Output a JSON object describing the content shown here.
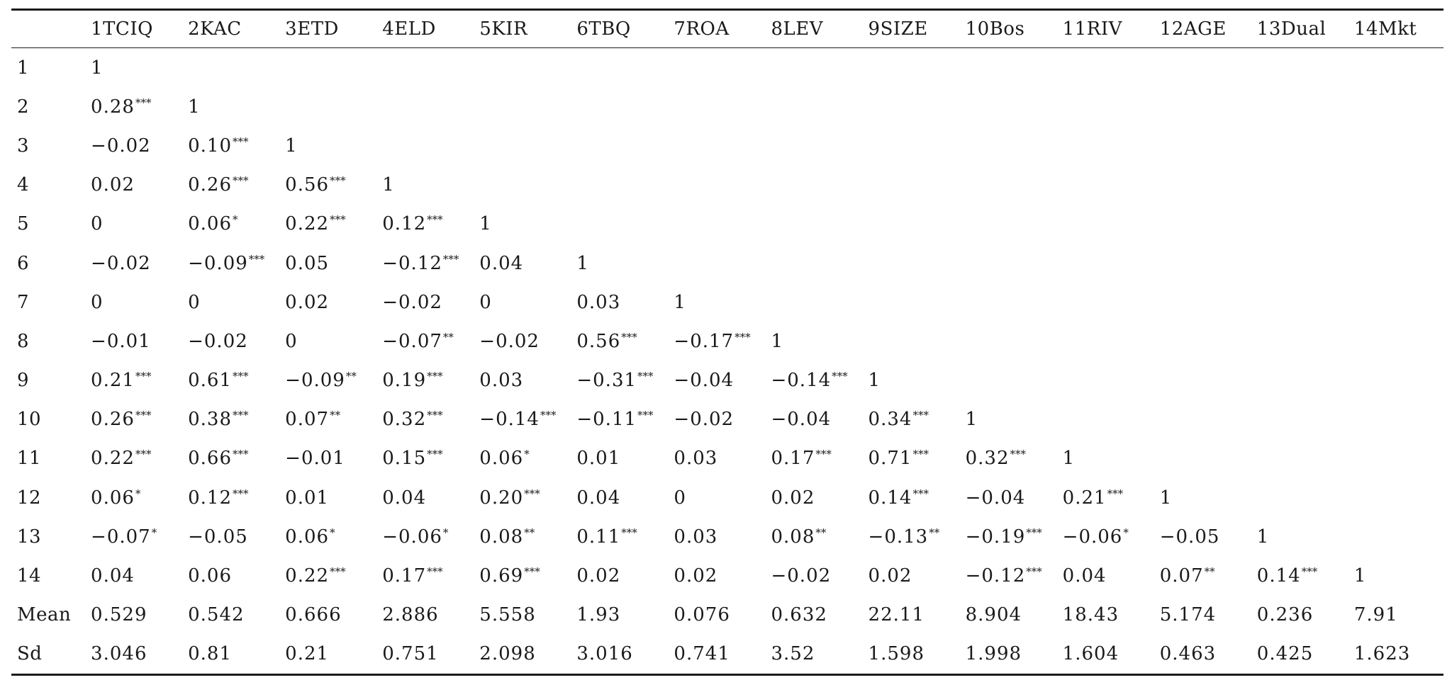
{
  "table": {
    "header_corner": "",
    "columns": [
      "1TCIQ",
      "2KAC",
      "3ETD",
      "4ELD",
      "5KIR",
      "6TBQ",
      "7ROA",
      "8LEV",
      "9SIZE",
      "10Bos",
      "11RIV",
      "12AGE",
      "13Dual",
      "14Mkt"
    ],
    "rows": [
      {
        "label": "1",
        "cells": [
          [
            "1",
            ""
          ]
        ]
      },
      {
        "label": "2",
        "cells": [
          [
            "0.28",
            "***"
          ],
          [
            "1",
            ""
          ]
        ]
      },
      {
        "label": "3",
        "cells": [
          [
            "−0.02",
            ""
          ],
          [
            "0.10",
            "***"
          ],
          [
            "1",
            ""
          ]
        ]
      },
      {
        "label": "4",
        "cells": [
          [
            "0.02",
            ""
          ],
          [
            "0.26",
            "***"
          ],
          [
            "0.56",
            "***"
          ],
          [
            "1",
            ""
          ]
        ]
      },
      {
        "label": "5",
        "cells": [
          [
            "0",
            ""
          ],
          [
            "0.06",
            "*"
          ],
          [
            "0.22",
            "***"
          ],
          [
            "0.12",
            "***"
          ],
          [
            "1",
            ""
          ]
        ]
      },
      {
        "label": "6",
        "cells": [
          [
            "−0.02",
            ""
          ],
          [
            "−0.09",
            "***"
          ],
          [
            "0.05",
            ""
          ],
          [
            "−0.12",
            "***"
          ],
          [
            "0.04",
            ""
          ],
          [
            "1",
            ""
          ]
        ]
      },
      {
        "label": "7",
        "cells": [
          [
            "0",
            ""
          ],
          [
            "0",
            ""
          ],
          [
            "0.02",
            ""
          ],
          [
            "−0.02",
            ""
          ],
          [
            "0",
            ""
          ],
          [
            "0.03",
            ""
          ],
          [
            "1",
            ""
          ]
        ]
      },
      {
        "label": "8",
        "cells": [
          [
            "−0.01",
            ""
          ],
          [
            "−0.02",
            ""
          ],
          [
            "0",
            ""
          ],
          [
            "−0.07",
            "**"
          ],
          [
            "−0.02",
            ""
          ],
          [
            "0.56",
            "***"
          ],
          [
            "−0.17",
            "***"
          ],
          [
            "1",
            ""
          ]
        ]
      },
      {
        "label": "9",
        "cells": [
          [
            "0.21",
            "***"
          ],
          [
            "0.61",
            "***"
          ],
          [
            "−0.09",
            "**"
          ],
          [
            "0.19",
            "***"
          ],
          [
            "0.03",
            ""
          ],
          [
            "−0.31",
            "***"
          ],
          [
            "−0.04",
            ""
          ],
          [
            "−0.14",
            "***"
          ],
          [
            "1",
            ""
          ]
        ]
      },
      {
        "label": "10",
        "cells": [
          [
            "0.26",
            "***"
          ],
          [
            "0.38",
            "***"
          ],
          [
            "0.07",
            "**"
          ],
          [
            "0.32",
            "***"
          ],
          [
            "−0.14",
            "***"
          ],
          [
            "−0.11",
            "***"
          ],
          [
            "−0.02",
            ""
          ],
          [
            "−0.04",
            ""
          ],
          [
            "0.34",
            "***"
          ],
          [
            "1",
            ""
          ]
        ]
      },
      {
        "label": "11",
        "cells": [
          [
            "0.22",
            "***"
          ],
          [
            "0.66",
            "***"
          ],
          [
            "−0.01",
            ""
          ],
          [
            "0.15",
            "***"
          ],
          [
            "0.06",
            "*"
          ],
          [
            "0.01",
            ""
          ],
          [
            "0.03",
            ""
          ],
          [
            "0.17",
            "***"
          ],
          [
            "0.71",
            "***"
          ],
          [
            "0.32",
            "***"
          ],
          [
            "1",
            ""
          ]
        ]
      },
      {
        "label": "12",
        "cells": [
          [
            "0.06",
            "*"
          ],
          [
            "0.12",
            "***"
          ],
          [
            "0.01",
            ""
          ],
          [
            "0.04",
            ""
          ],
          [
            "0.20",
            "***"
          ],
          [
            "0.04",
            ""
          ],
          [
            "0",
            ""
          ],
          [
            "0.02",
            ""
          ],
          [
            "0.14",
            "***"
          ],
          [
            "−0.04",
            ""
          ],
          [
            "0.21",
            "***"
          ],
          [
            "1",
            ""
          ]
        ]
      },
      {
        "label": "13",
        "cells": [
          [
            "−0.07",
            "*"
          ],
          [
            "−0.05",
            ""
          ],
          [
            "0.06",
            "*"
          ],
          [
            "−0.06",
            "*"
          ],
          [
            "0.08",
            "**"
          ],
          [
            "0.11",
            "***"
          ],
          [
            "0.03",
            ""
          ],
          [
            "0.08",
            "**"
          ],
          [
            "−0.13",
            "**"
          ],
          [
            "−0.19",
            "***"
          ],
          [
            "−0.06",
            "*"
          ],
          [
            "−0.05",
            ""
          ],
          [
            "1",
            ""
          ]
        ]
      },
      {
        "label": "14",
        "cells": [
          [
            "0.04",
            ""
          ],
          [
            "0.06",
            ""
          ],
          [
            "0.22",
            "***"
          ],
          [
            "0.17",
            "***"
          ],
          [
            "0.69",
            "***"
          ],
          [
            "0.02",
            ""
          ],
          [
            "0.02",
            ""
          ],
          [
            "−0.02",
            ""
          ],
          [
            "0.02",
            ""
          ],
          [
            "−0.12",
            "***"
          ],
          [
            "0.04",
            ""
          ],
          [
            "0.07",
            "**"
          ],
          [
            "0.14",
            "***"
          ],
          [
            "1",
            ""
          ]
        ]
      },
      {
        "label": "Mean",
        "cells": [
          [
            "0.529",
            ""
          ],
          [
            "0.542",
            ""
          ],
          [
            "0.666",
            ""
          ],
          [
            "2.886",
            ""
          ],
          [
            "5.558",
            ""
          ],
          [
            "1.93",
            ""
          ],
          [
            "0.076",
            ""
          ],
          [
            "0.632",
            ""
          ],
          [
            "22.11",
            ""
          ],
          [
            "8.904",
            ""
          ],
          [
            "18.43",
            ""
          ],
          [
            "5.174",
            ""
          ],
          [
            "0.236",
            ""
          ],
          [
            "7.91",
            ""
          ]
        ]
      },
      {
        "label": "Sd",
        "cells": [
          [
            "3.046",
            ""
          ],
          [
            "0.81",
            ""
          ],
          [
            "0.21",
            ""
          ],
          [
            "0.751",
            ""
          ],
          [
            "2.098",
            ""
          ],
          [
            "3.016",
            ""
          ],
          [
            "0.741",
            ""
          ],
          [
            "3.52",
            ""
          ],
          [
            "1.598",
            ""
          ],
          [
            "1.998",
            ""
          ],
          [
            "1.604",
            ""
          ],
          [
            "0.463",
            ""
          ],
          [
            "0.425",
            ""
          ],
          [
            "1.623",
            ""
          ]
        ]
      }
    ]
  }
}
